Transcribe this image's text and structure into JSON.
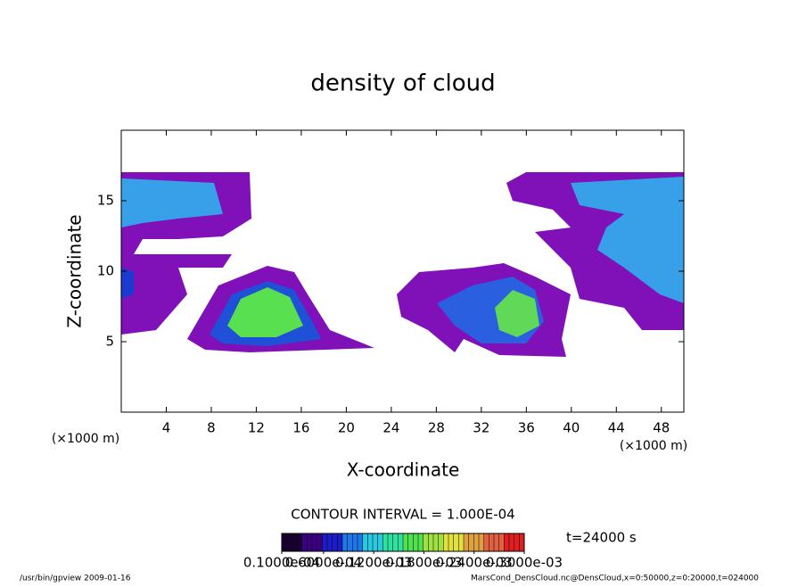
{
  "chart_data": {
    "type": "contour",
    "title": "density of cloud",
    "x_label": "X-coordinate",
    "y_label": "Z-coordinate",
    "x_unit": "(×1000 m)",
    "y_unit": "(×1000 m)",
    "xlim": [
      0,
      50
    ],
    "xticks": [
      4,
      8,
      12,
      16,
      20,
      24,
      28,
      32,
      36,
      40,
      44,
      48
    ],
    "ylim": [
      0,
      20
    ],
    "yticks": [
      5,
      10,
      15
    ],
    "contour_interval": "CONTOUR INTERVAL = 1.000E-04",
    "time": "t=24000 s",
    "colorbar": {
      "clim": [
        1e-05,
        0.0003
      ],
      "colors": [
        "#1a0030",
        "#3a0080",
        "#1c1cc8",
        "#1e78e8",
        "#28c8e0",
        "#30e0a0",
        "#50e050",
        "#a0e040",
        "#e0e040",
        "#e0a040",
        "#e06040",
        "#e02020"
      ],
      "ticks": [
        {
          "value": 1e-05,
          "label": "0.1000e-04"
        },
        {
          "value": 6e-05,
          "label": "0.6000e-04"
        },
        {
          "value": 0.00012,
          "label": "0.1200e-03"
        },
        {
          "value": 0.00018,
          "label": "0.1800e-03"
        },
        {
          "value": 0.00024,
          "label": "0.2400e-03"
        },
        {
          "value": 0.0003,
          "label": "0.3000e-03"
        }
      ]
    },
    "footer_left": "/usr/bin/gpview  2009-01-16",
    "footer_right": "MarsCond_DensCloud.nc@DensCloud,x=0:50000,z=0:20000,t=024000"
  }
}
